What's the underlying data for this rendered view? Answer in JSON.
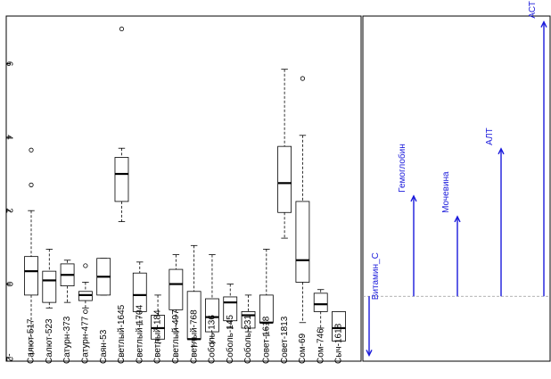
{
  "colors": {
    "box": "#000000",
    "arrow": "#1a1adb",
    "axis": "#000000",
    "ref": "#999999"
  },
  "chart_data": [
    {
      "type": "boxplot",
      "title": "",
      "xlabel": "",
      "ylabel": "",
      "ylim": [
        -2.1,
        7.3
      ],
      "y_ticks": [
        "-2",
        "0",
        "2",
        "4",
        "6"
      ],
      "y_tick_values": [
        -2,
        0,
        2,
        4,
        6
      ],
      "categories": [
        "Салют-517",
        "Салют-523",
        "Сатурн-373",
        "Сатурн-477",
        "Саян-53",
        "Светлый-1645",
        "Светлый-1704",
        "Светлый-184",
        "Светлый-497",
        "Светлый-768",
        "Соболь-136",
        "Соболь-145",
        "Соболь-231",
        "Совет-1618",
        "Совет-1813",
        "Сом-69",
        "Сом-746",
        "Сыч-1618"
      ],
      "boxes": [
        {
          "whisker_low": -1.9,
          "q1": -0.3,
          "median": 0.35,
          "q3": 0.75,
          "whisker_high": 2.0,
          "outliers": [
            2.7,
            3.65
          ]
        },
        {
          "whisker_low": -0.65,
          "q1": -0.5,
          "median": 0.1,
          "q3": 0.35,
          "whisker_high": 0.95,
          "outliers": []
        },
        {
          "whisker_low": -0.5,
          "q1": -0.05,
          "median": 0.25,
          "q3": 0.55,
          "whisker_high": 0.65,
          "outliers": []
        },
        {
          "whisker_low": -0.65,
          "q1": -0.45,
          "median": -0.3,
          "q3": -0.2,
          "whisker_high": 0.05,
          "outliers": [
            -0.75,
            0.5
          ]
        },
        {
          "whisker_low": -0.3,
          "q1": -0.3,
          "median": 0.2,
          "q3": 0.7,
          "whisker_high": 0.7,
          "outliers": []
        },
        {
          "whisker_low": 1.7,
          "q1": 2.25,
          "median": 3.0,
          "q3": 3.45,
          "whisker_high": 3.7,
          "outliers": [
            6.95
          ]
        },
        {
          "whisker_low": -1.1,
          "q1": -0.75,
          "median": -0.3,
          "q3": 0.3,
          "whisker_high": 0.6,
          "outliers": []
        },
        {
          "whisker_low": -1.6,
          "q1": -1.5,
          "median": -1.2,
          "q3": -0.85,
          "whisker_high": -0.3,
          "outliers": []
        },
        {
          "whisker_low": -1.3,
          "q1": -0.7,
          "median": 0.0,
          "q3": 0.4,
          "whisker_high": 0.8,
          "outliers": []
        },
        {
          "whisker_low": -1.7,
          "q1": -1.5,
          "median": -1.5,
          "q3": -0.2,
          "whisker_high": 1.05,
          "outliers": []
        },
        {
          "whisker_low": -1.6,
          "q1": -1.3,
          "median": -0.9,
          "q3": -0.4,
          "whisker_high": 0.8,
          "outliers": []
        },
        {
          "whisker_low": -1.2,
          "q1": -1.0,
          "median": -0.5,
          "q3": -0.35,
          "whisker_high": 0.0,
          "outliers": []
        },
        {
          "whisker_low": -1.3,
          "q1": -1.2,
          "median": -0.85,
          "q3": -0.75,
          "whisker_high": -0.3,
          "outliers": []
        },
        {
          "whisker_low": -1.4,
          "q1": -1.05,
          "median": -1.05,
          "q3": -0.3,
          "whisker_high": 0.95,
          "outliers": []
        },
        {
          "whisker_low": 1.25,
          "q1": 1.95,
          "median": 2.75,
          "q3": 3.75,
          "whisker_high": 5.85,
          "outliers": []
        },
        {
          "whisker_low": -1.05,
          "q1": 0.05,
          "median": 0.65,
          "q3": 2.25,
          "whisker_high": 4.05,
          "outliers": [
            5.6
          ]
        },
        {
          "whisker_low": -1.2,
          "q1": -0.75,
          "median": -0.55,
          "q3": -0.25,
          "whisker_high": -0.15,
          "outliers": []
        },
        {
          "whisker_low": -1.55,
          "q1": -1.55,
          "median": -1.2,
          "q3": -0.75,
          "whisker_high": -0.75,
          "outliers": []
        }
      ]
    },
    {
      "type": "loadings",
      "title": "",
      "xlabel": "",
      "ylabel": "",
      "ylim": [
        -0.22,
        0.95
      ],
      "series": [
        {
          "name": "Витамин_С",
          "x": 1,
          "y": -0.2
        },
        {
          "name": "Гемоглобин",
          "x": 2,
          "y": 0.34
        },
        {
          "name": "Мочевина",
          "x": 3,
          "y": 0.27
        },
        {
          "name": "АЛТ",
          "x": 4,
          "y": 0.5
        },
        {
          "name": "АСТ",
          "x": 5,
          "y": 0.93
        }
      ]
    }
  ]
}
